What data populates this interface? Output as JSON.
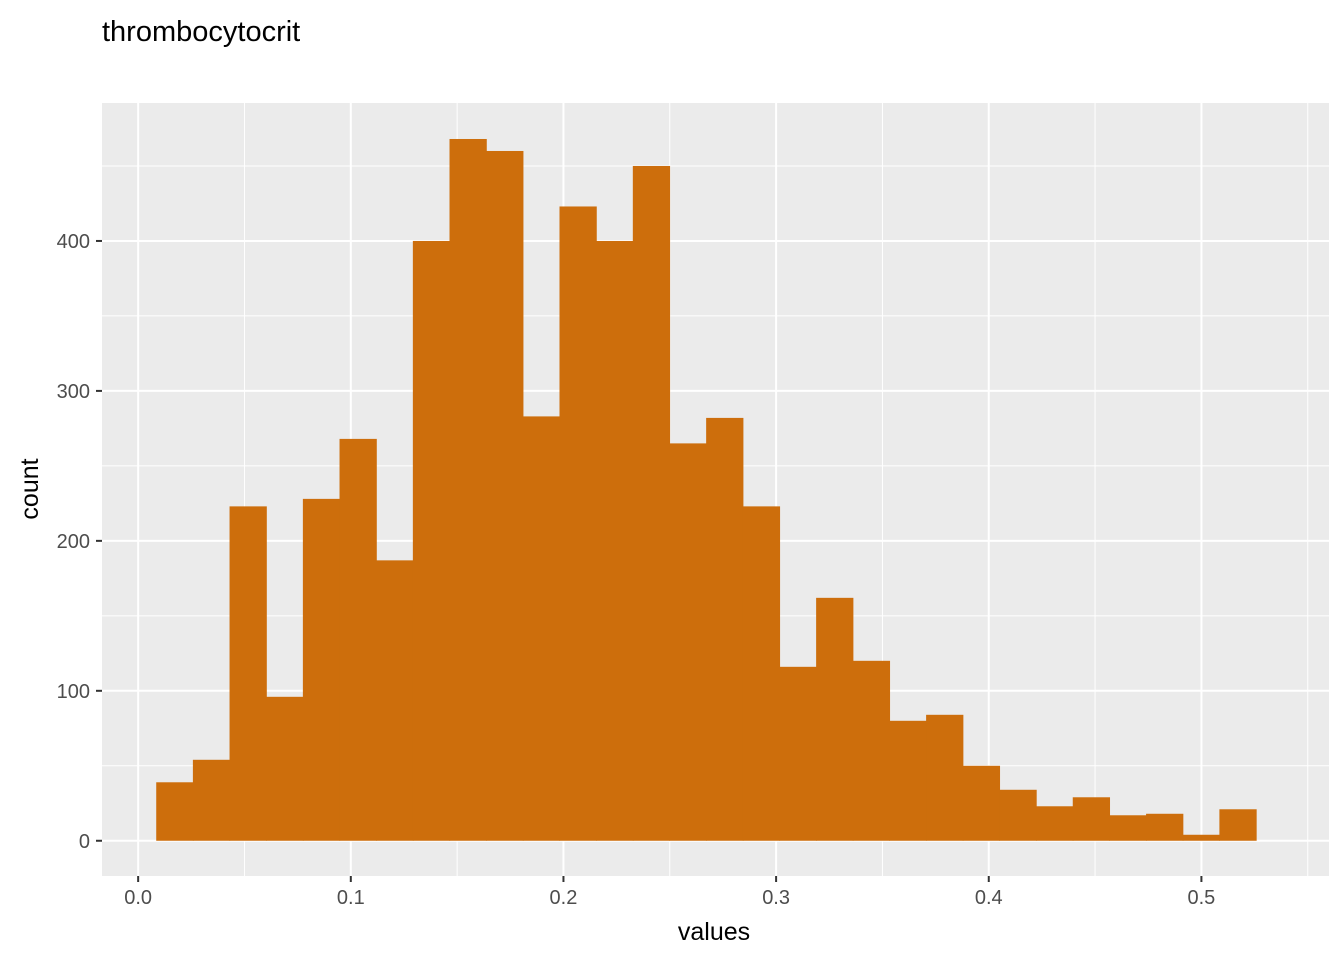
{
  "chart_data": {
    "type": "bar",
    "title": "thrombocytocrit",
    "xlabel": "values",
    "ylabel": "count",
    "xlim": [
      -0.017,
      0.56
    ],
    "ylim": [
      -23.5,
      492
    ],
    "x_ticks": [
      0.0,
      0.1,
      0.2,
      0.3,
      0.4,
      0.5
    ],
    "x_tick_labels": [
      "0.0",
      "0.1",
      "0.2",
      "0.3",
      "0.4",
      "0.5"
    ],
    "y_ticks": [
      0,
      100,
      200,
      300,
      400
    ],
    "y_tick_labels": [
      "0",
      "100",
      "200",
      "300",
      "400"
    ],
    "grid": true,
    "bin_width": 0.01724,
    "bin_start": 0.0085,
    "values": [
      39,
      54,
      223,
      96,
      228,
      268,
      187,
      400,
      468,
      460,
      283,
      423,
      400,
      450,
      265,
      282,
      223,
      116,
      162,
      120,
      80,
      84,
      50,
      34,
      23,
      29,
      17,
      18,
      4,
      21
    ],
    "bar_color": "#CD6E0C",
    "panel_color": "#EBEBEB",
    "grid_color": "#FFFFFF"
  }
}
